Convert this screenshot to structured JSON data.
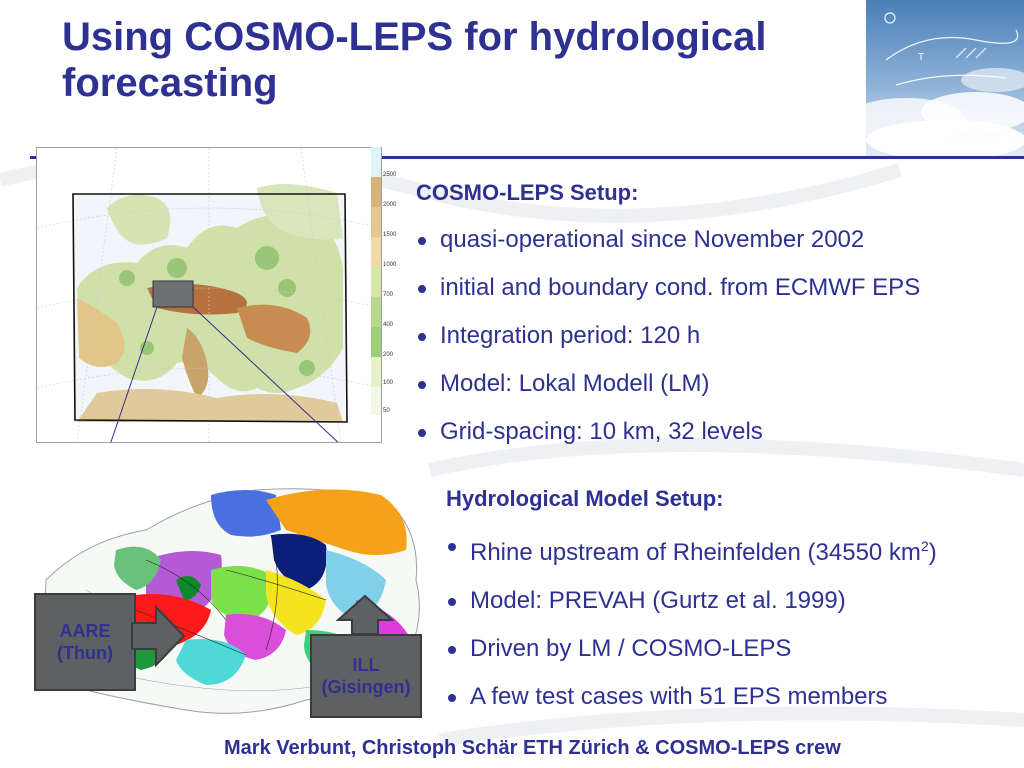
{
  "slide": {
    "title_line1": "Using COSMO-LEPS for hydrological",
    "title_line2": "forecasting",
    "accent_color": "#2e3192"
  },
  "map": {
    "scale_labels": [
      "2500",
      "2000",
      "1500",
      "1000",
      "700",
      "400",
      "200",
      "100",
      "50"
    ]
  },
  "cosmo_setup": {
    "heading": "COSMO-LEPS Setup:",
    "items": [
      "quasi-operational since November 2002",
      "initial and boundary cond. from ECMWF EPS",
      "Integration period: 120 h",
      "Model: Lokal Modell (LM)",
      "Grid-spacing: 10 km, 32 levels"
    ]
  },
  "hydro_setup": {
    "heading": "Hydrological Model Setup:",
    "item1_text": "Rhine upstream of Rheinfelden (34550 km",
    "item1_sup": "2",
    "item1_end": ")",
    "items": [
      "Model: PREVAH (Gurtz et al. 1999)",
      "Driven by LM / COSMO-LEPS",
      "A few test cases with 51 EPS members"
    ]
  },
  "callouts": {
    "aare_line1": "AARE",
    "aare_line2": "(Thun)",
    "ill_line1": "ILL",
    "ill_line2": "(Gisingen)"
  },
  "footer": "Mark Verbunt, Christoph Schär ETH Zürich & COSMO-LEPS crew"
}
